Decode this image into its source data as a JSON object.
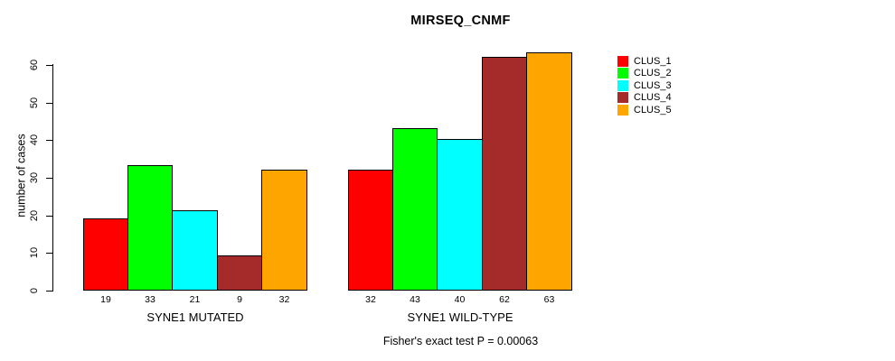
{
  "title": "MIRSEQ_CNMF",
  "caption": "Fisher's exact test P = 0.00063",
  "chart_data": {
    "type": "bar",
    "title": "MIRSEQ_CNMF",
    "xlabel": "",
    "ylabel": "number of cases",
    "ylim": [
      0,
      60
    ],
    "yticks": [
      0,
      10,
      20,
      30,
      40,
      50,
      60
    ],
    "grid": false,
    "legend_position": "top-right",
    "categories": [
      "SYNE1 MUTATED",
      "SYNE1 WILD-TYPE"
    ],
    "series": [
      {
        "name": "CLUS_1",
        "color": "#FF0000",
        "values": [
          19,
          32
        ]
      },
      {
        "name": "CLUS_2",
        "color": "#00FF00",
        "values": [
          33,
          43
        ]
      },
      {
        "name": "CLUS_3",
        "color": "#00FFFF",
        "values": [
          21,
          40
        ]
      },
      {
        "name": "CLUS_4",
        "color": "#A52A2A",
        "values": [
          9,
          62
        ]
      },
      {
        "name": "CLUS_5",
        "color": "#FFA500",
        "values": [
          32,
          63
        ]
      }
    ],
    "bar_value_labels": true,
    "annotation": "Fisher's exact test P = 0.00063"
  }
}
